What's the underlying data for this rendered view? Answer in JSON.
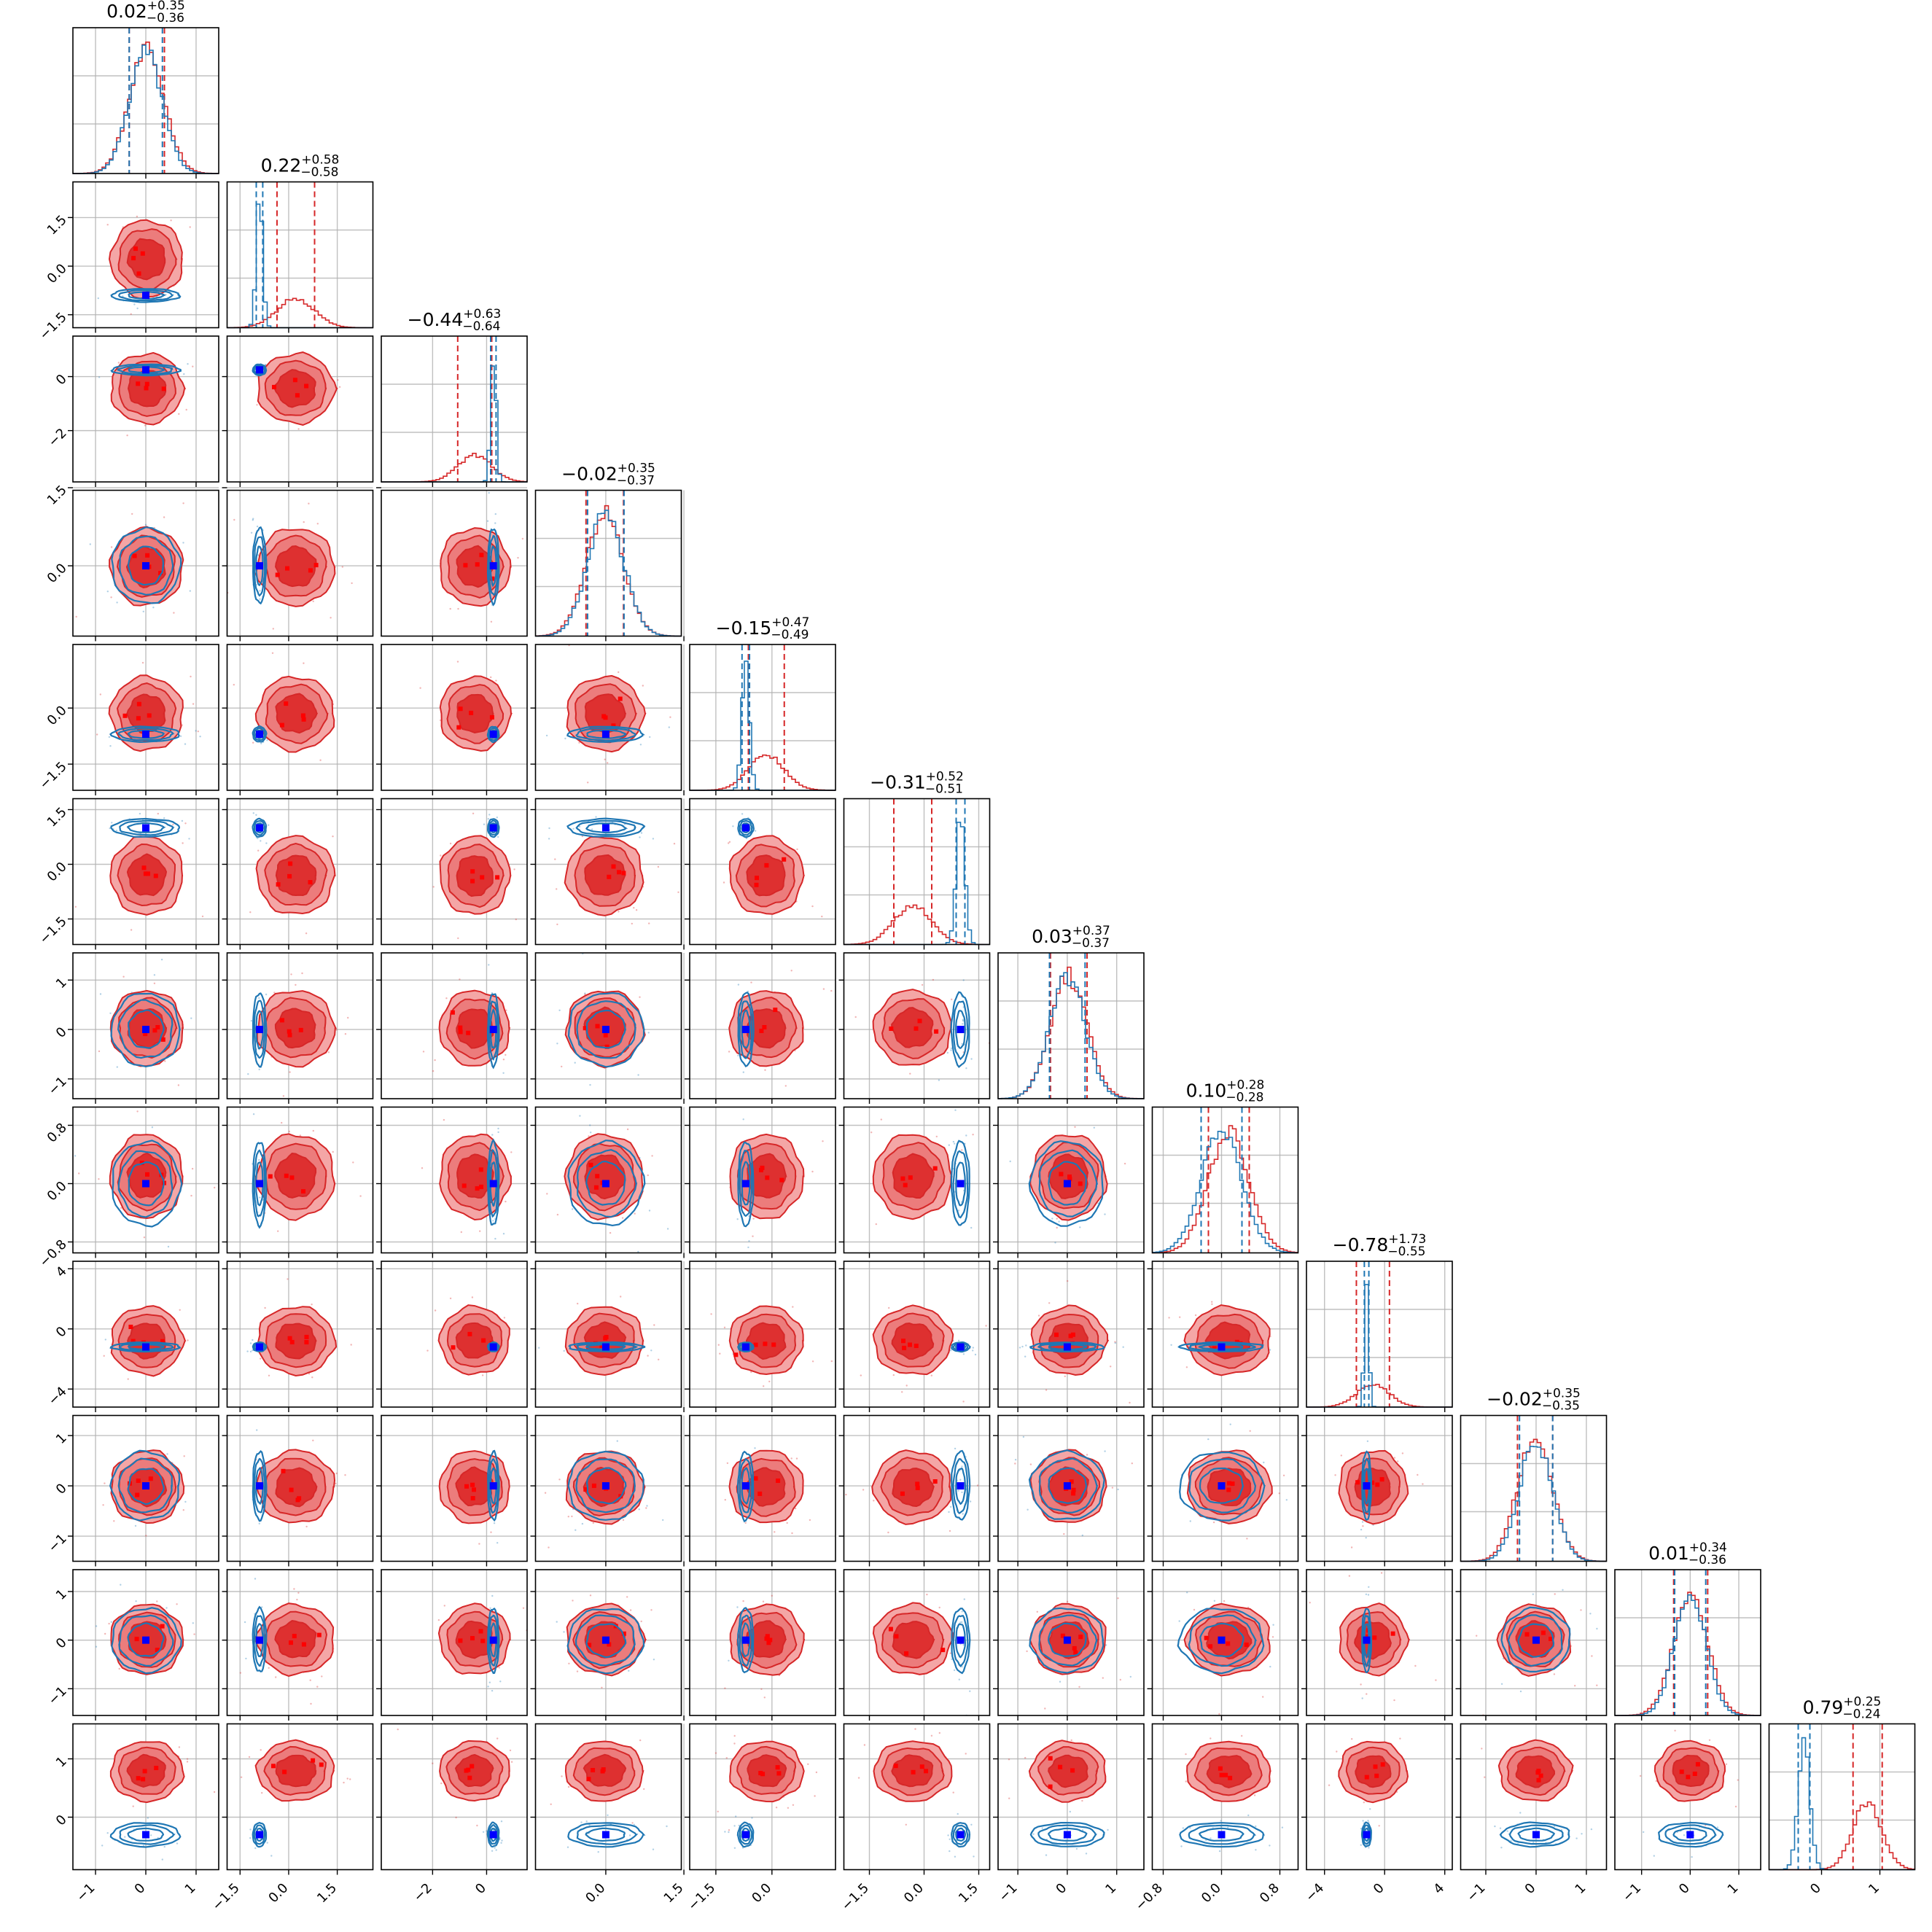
{
  "chart_data": {
    "type": "corner",
    "n_params": 12,
    "grid": true,
    "series": [
      {
        "name": "",
        "color": "#d62728"
      },
      {
        "name": "",
        "color": "#1f77b4"
      }
    ],
    "red_center": [
      0.02,
      0.22,
      -0.44,
      -0.02,
      -0.15,
      -0.31,
      0.03,
      0.1,
      -0.78,
      -0.02,
      0.01,
      0.79
    ],
    "red_sigma": [
      0.35,
      0.58,
      0.63,
      0.36,
      0.48,
      0.52,
      0.37,
      0.28,
      1.1,
      0.35,
      0.35,
      0.25
    ],
    "blue_center": [
      0.0,
      -0.9,
      0.25,
      0.0,
      -0.7,
      1.0,
      0.0,
      0.0,
      -1.2,
      0.0,
      0.0,
      -0.3
    ],
    "blue_sigma": [
      0.33,
      0.1,
      0.1,
      0.35,
      0.1,
      0.12,
      0.36,
      0.28,
      0.15,
      0.33,
      0.32,
      0.1
    ],
    "titles": [
      {
        "main": "0.02",
        "plus": "+0.35",
        "minus": "−0.36"
      },
      {
        "main": "0.22",
        "plus": "+0.58",
        "minus": "−0.58"
      },
      {
        "main": "−0.44",
        "plus": "+0.63",
        "minus": "−0.64"
      },
      {
        "main": "−0.02",
        "plus": "+0.35",
        "minus": "−0.37"
      },
      {
        "main": "−0.15",
        "plus": "+0.47",
        "minus": "−0.49"
      },
      {
        "main": "−0.31",
        "plus": "+0.52",
        "minus": "−0.51"
      },
      {
        "main": "0.03",
        "plus": "+0.37",
        "minus": "−0.37"
      },
      {
        "main": "0.10",
        "plus": "+0.28",
        "minus": "−0.28"
      },
      {
        "main": "−0.78",
        "plus": "+1.73",
        "minus": "−0.55"
      },
      {
        "main": "−0.02",
        "plus": "+0.35",
        "minus": "−0.35"
      },
      {
        "main": "0.01",
        "plus": "+0.34",
        "minus": "−0.36"
      },
      {
        "main": "0.79",
        "plus": "+0.25",
        "minus": "−0.24"
      }
    ],
    "ranges": [
      [
        -1.45,
        1.45
      ],
      [
        -1.9,
        2.6
      ],
      [
        -3.9,
        1.5
      ],
      [
        -1.35,
        1.45
      ],
      [
        -2.2,
        1.7
      ],
      [
        -2.2,
        1.8
      ],
      [
        -1.4,
        1.55
      ],
      [
        -0.95,
        1.05
      ],
      [
        -5.2,
        4.5
      ],
      [
        -1.5,
        1.4
      ],
      [
        -1.55,
        1.45
      ],
      [
        -0.9,
        1.6
      ]
    ],
    "ticks": [
      [
        "−1",
        "0",
        "1"
      ],
      [
        "−1.5",
        "0.0",
        "1.5"
      ],
      [
        "−2",
        "0"
      ],
      [
        "0.0",
        "1.5"
      ],
      [
        "−1.5",
        "0.0"
      ],
      [
        "−1.5",
        "0.0",
        "1.5"
      ],
      [
        "−1",
        "0",
        "1"
      ],
      [
        "−0.8",
        "0.0",
        "0.8"
      ],
      [
        "−4",
        "0",
        "4"
      ],
      [
        "−1",
        "0",
        "1"
      ],
      [
        "−1",
        "0",
        "1"
      ],
      [
        "0",
        "1"
      ]
    ],
    "tick_values": [
      [
        -1,
        0,
        1
      ],
      [
        -1.5,
        0,
        1.5
      ],
      [
        -2,
        0
      ],
      [
        0,
        1.5
      ],
      [
        -1.5,
        0
      ],
      [
        -1.5,
        0,
        1.5
      ],
      [
        -1,
        0,
        1
      ],
      [
        -0.8,
        0,
        0.8
      ],
      [
        -4,
        0,
        4
      ],
      [
        -1,
        0,
        1
      ],
      [
        -1,
        0,
        1
      ],
      [
        0,
        1
      ]
    ]
  }
}
